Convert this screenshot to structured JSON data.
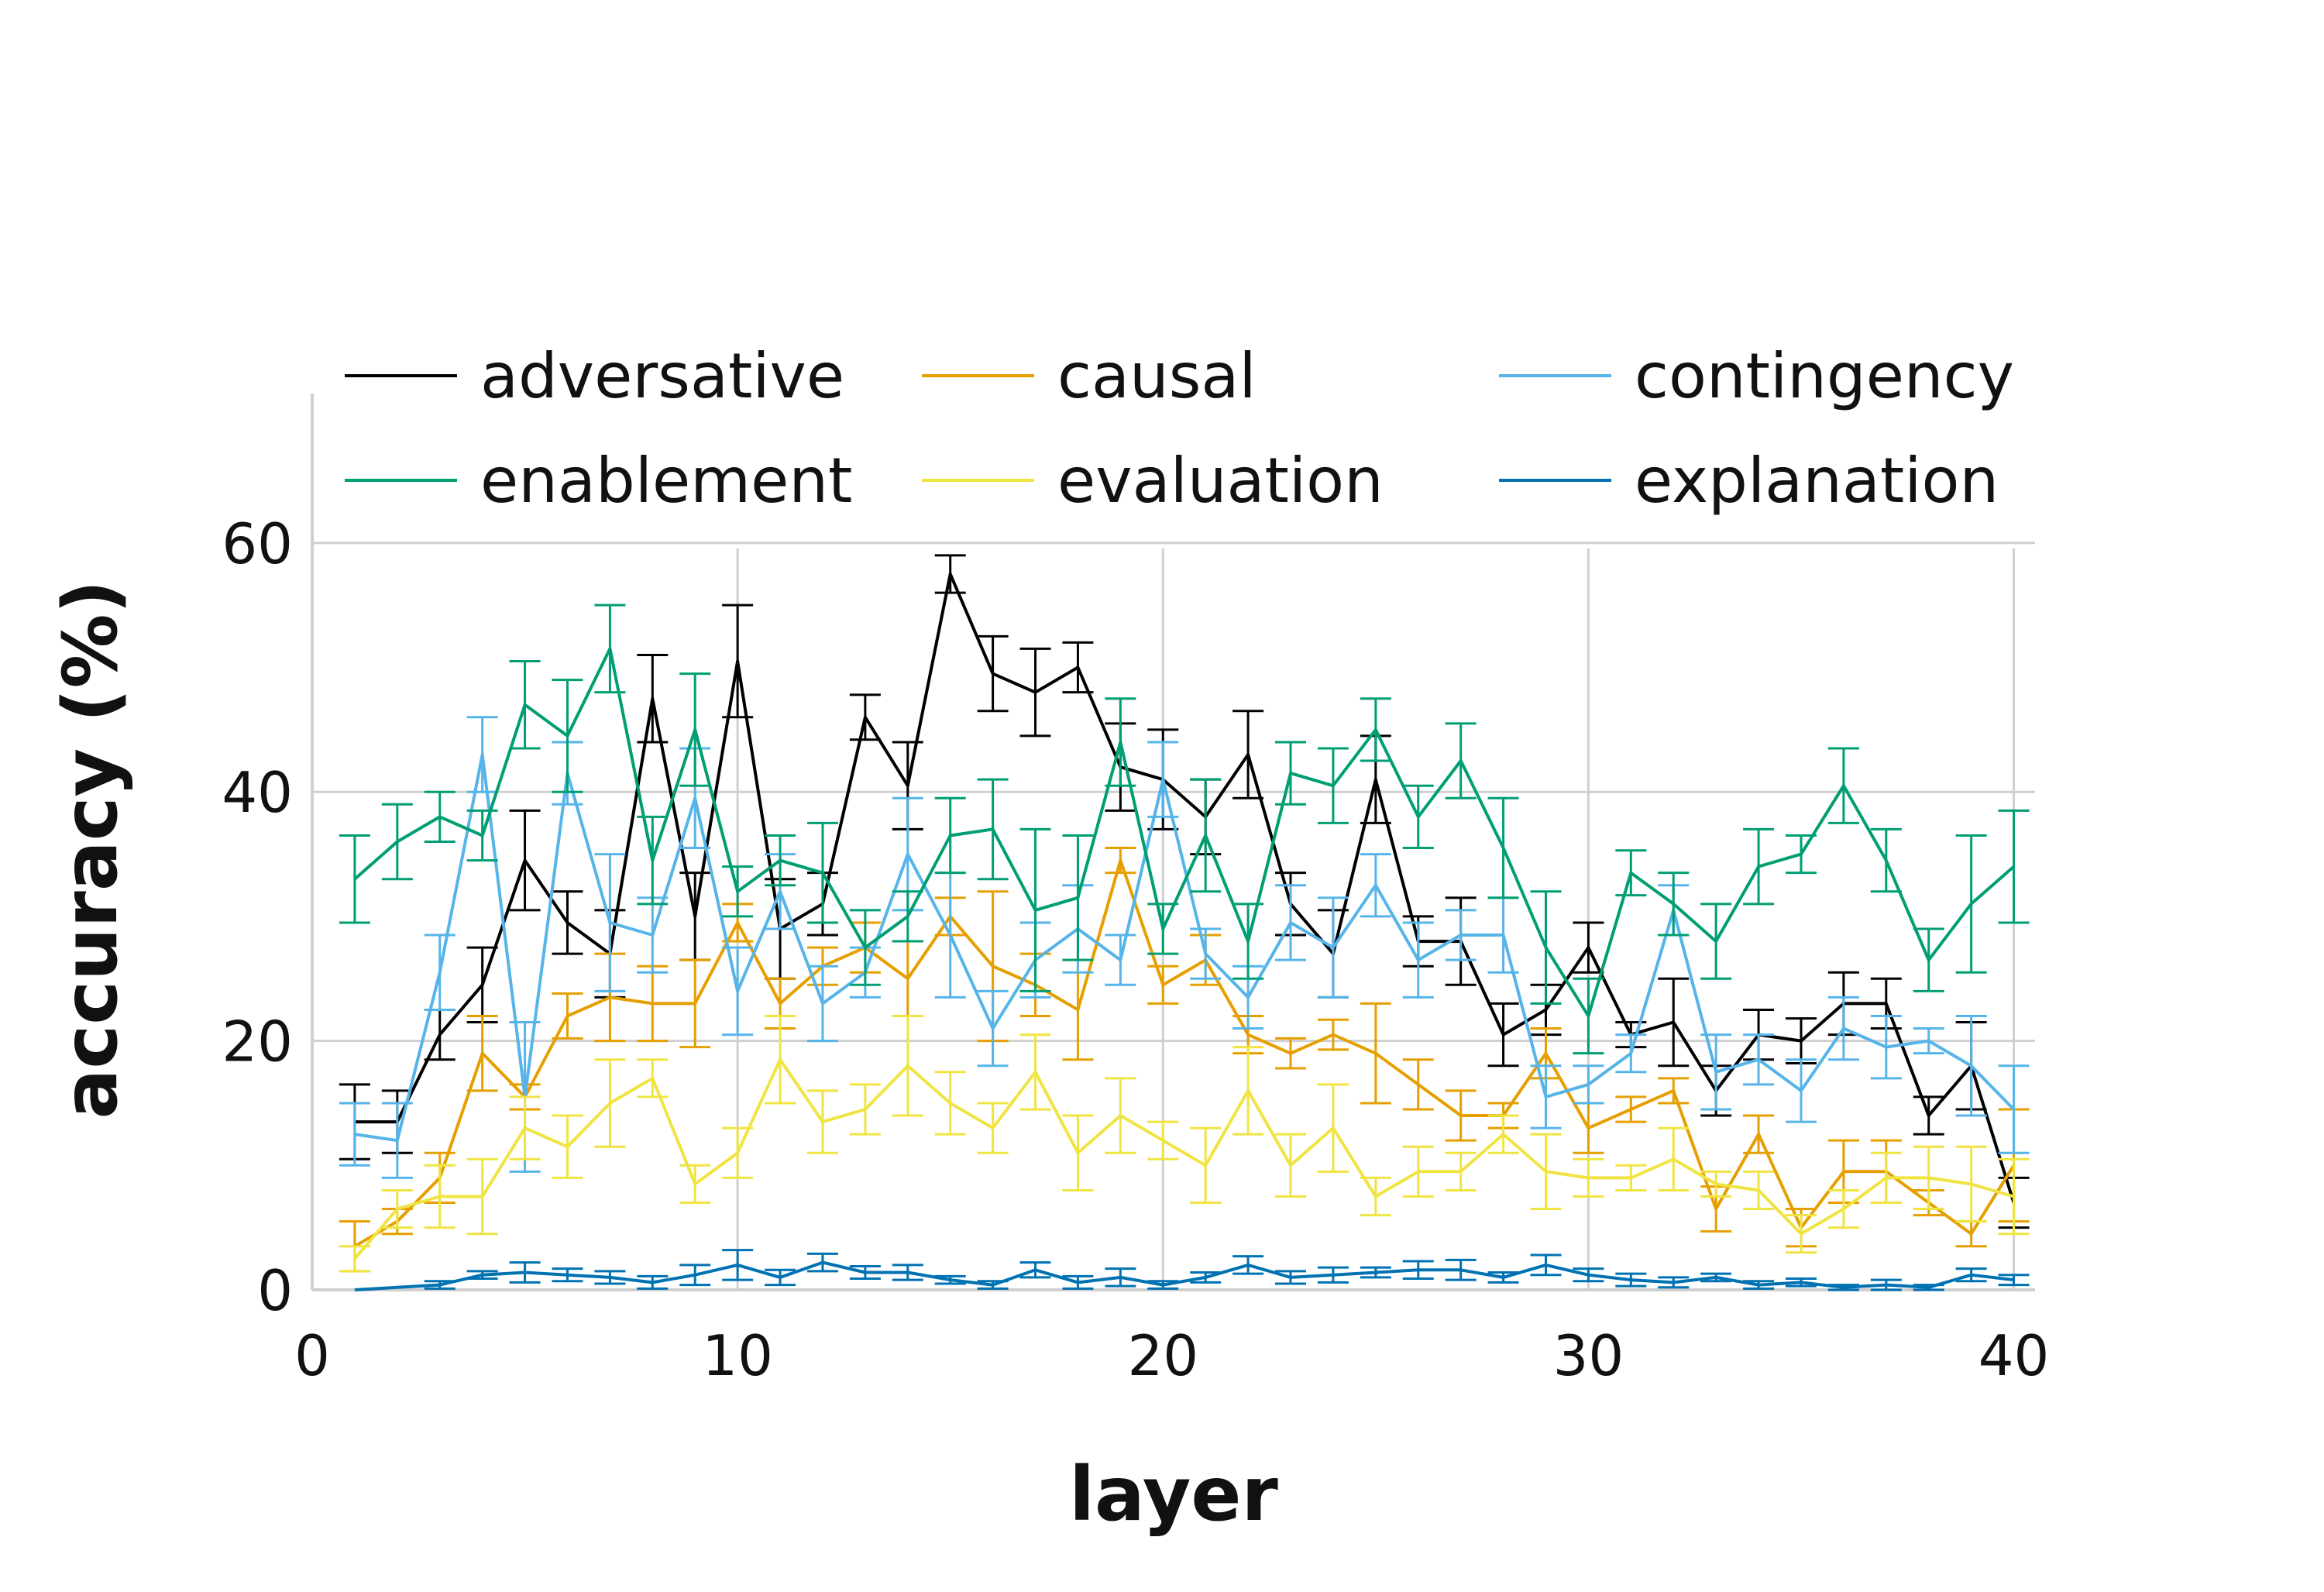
{
  "chart_data": {
    "type": "line",
    "xlabel": "layer",
    "ylabel": "accuracy (%)",
    "xlim": [
      0,
      40.5
    ],
    "ylim": [
      0,
      72
    ],
    "xticks": [
      0,
      10,
      20,
      30,
      40
    ],
    "yticks": [
      0,
      20,
      40,
      60
    ],
    "grid": true,
    "legend_position": "top",
    "x": [
      1,
      2,
      3,
      4,
      5,
      6,
      7,
      8,
      9,
      10,
      11,
      12,
      13,
      14,
      15,
      16,
      17,
      18,
      19,
      20,
      21,
      22,
      23,
      24,
      25,
      26,
      27,
      28,
      29,
      30,
      31,
      32,
      33,
      34,
      35,
      36,
      37,
      38,
      39,
      40
    ],
    "series": [
      {
        "name": "adversative",
        "color": "#000000",
        "values": [
          13.5,
          13.5,
          20.5,
          24.5,
          34.5,
          29.5,
          27.0,
          47.5,
          30.0,
          50.5,
          29.0,
          31.0,
          46.0,
          40.5,
          57.5,
          49.5,
          48.0,
          50.0,
          42.0,
          41.0,
          38.0,
          43.0,
          31.0,
          27.0,
          41.0,
          28.0,
          28.0,
          20.5,
          22.5,
          27.5,
          20.5,
          21.5,
          16.0,
          20.5,
          20.0,
          23.0,
          23.0,
          14.0,
          18.0,
          7.0
        ],
        "errors": [
          3.0,
          2.5,
          2.0,
          3.0,
          4.0,
          2.5,
          3.5,
          3.5,
          3.5,
          4.5,
          4.0,
          2.5,
          1.8,
          3.5,
          1.5,
          3.0,
          3.5,
          2.0,
          3.5,
          4.0,
          3.0,
          3.5,
          2.5,
          3.5,
          3.5,
          2.0,
          3.5,
          2.5,
          2.0,
          2.0,
          1.0,
          3.5,
          2.0,
          2.0,
          1.8,
          2.5,
          2.0,
          1.5,
          3.5,
          2.0
        ]
      },
      {
        "name": "causal",
        "color": "#E69F00",
        "values": [
          3.5,
          5.5,
          9.0,
          19.0,
          15.5,
          22.0,
          23.5,
          23.0,
          23.0,
          29.5,
          23.0,
          26.0,
          27.5,
          25.0,
          30.0,
          26.0,
          24.5,
          22.5,
          34.5,
          24.5,
          26.5,
          20.5,
          19.0,
          20.5,
          19.0,
          16.5,
          14.0,
          14.0,
          19.0,
          13.0,
          14.5,
          16.0,
          6.5,
          12.5,
          5.0,
          9.5,
          9.5,
          7.0,
          4.5,
          10.0
        ],
        "errors": [
          2.0,
          1.0,
          2.0,
          3.0,
          1.0,
          1.8,
          3.5,
          3.0,
          3.5,
          1.5,
          2.0,
          1.5,
          2.0,
          3.0,
          1.5,
          6.0,
          2.5,
          4.0,
          1.0,
          1.5,
          2.0,
          1.5,
          1.2,
          1.2,
          4.0,
          2.0,
          2.0,
          1.0,
          2.0,
          2.0,
          1.0,
          1.0,
          1.8,
          1.5,
          1.5,
          2.5,
          2.5,
          1.0,
          1.0,
          4.5
        ]
      },
      {
        "name": "contingency",
        "color": "#56B4E9",
        "values": [
          12.5,
          12.0,
          25.5,
          43.0,
          15.5,
          41.5,
          29.5,
          28.5,
          39.5,
          24.0,
          32.0,
          23.0,
          25.5,
          35.0,
          28.5,
          21.0,
          26.5,
          29.0,
          26.5,
          41.0,
          27.0,
          23.5,
          29.5,
          27.5,
          32.5,
          26.5,
          28.5,
          28.5,
          15.5,
          16.5,
          19.0,
          30.5,
          17.5,
          18.5,
          16.0,
          21.0,
          19.5,
          20.0,
          18.0,
          14.5
        ],
        "errors": [
          2.5,
          3.0,
          3.0,
          3.0,
          6.0,
          2.5,
          5.5,
          3.0,
          4.0,
          3.5,
          3.0,
          3.0,
          2.0,
          4.5,
          5.0,
          3.0,
          3.0,
          3.5,
          2.0,
          3.0,
          2.0,
          2.5,
          3.0,
          4.0,
          2.5,
          3.0,
          2.0,
          3.0,
          2.5,
          1.5,
          1.5,
          2.0,
          3.0,
          2.0,
          2.5,
          2.5,
          2.5,
          1.0,
          4.0,
          3.5
        ]
      },
      {
        "name": "enablement",
        "color": "#009E73",
        "values": [
          33.0,
          36.0,
          38.0,
          36.5,
          47.0,
          44.5,
          51.5,
          34.5,
          45.0,
          32.0,
          34.5,
          33.5,
          27.5,
          30.0,
          36.5,
          37.0,
          30.5,
          31.5,
          44.0,
          29.0,
          36.5,
          28.0,
          41.5,
          40.5,
          45.0,
          38.0,
          42.5,
          35.5,
          27.5,
          22.0,
          33.5,
          31.0,
          28.0,
          34.0,
          35.0,
          40.5,
          34.5,
          26.5,
          31.0,
          34.0
        ],
        "errors": [
          3.5,
          3.0,
          2.0,
          2.0,
          3.5,
          4.5,
          3.5,
          3.5,
          4.5,
          2.0,
          2.0,
          4.0,
          3.0,
          2.0,
          3.0,
          4.0,
          6.5,
          5.0,
          3.5,
          2.0,
          4.5,
          3.0,
          2.5,
          3.0,
          2.5,
          2.5,
          3.0,
          4.0,
          4.5,
          3.0,
          1.8,
          2.5,
          3.0,
          3.0,
          1.5,
          3.0,
          2.5,
          2.5,
          5.5,
          4.5
        ]
      },
      {
        "name": "evaluation",
        "color": "#F0E442",
        "values": [
          2.5,
          6.5,
          7.5,
          7.5,
          13.0,
          11.5,
          15.0,
          17.0,
          8.5,
          11.0,
          18.5,
          13.5,
          14.5,
          18.0,
          15.0,
          13.0,
          17.5,
          11.0,
          14.0,
          12.0,
          10.0,
          16.0,
          10.0,
          13.0,
          7.5,
          9.5,
          9.5,
          12.5,
          9.5,
          9.0,
          9.0,
          10.5,
          8.5,
          8.0,
          4.5,
          6.5,
          9.0,
          9.0,
          8.5,
          7.5
        ],
        "errors": [
          1.0,
          1.5,
          2.5,
          3.0,
          2.5,
          2.5,
          3.5,
          1.5,
          1.5,
          2.0,
          3.5,
          2.5,
          2.0,
          4.0,
          2.5,
          2.0,
          3.0,
          3.0,
          3.0,
          1.5,
          3.0,
          3.5,
          2.5,
          3.5,
          1.5,
          2.0,
          1.5,
          1.5,
          3.0,
          1.5,
          1.0,
          2.5,
          1.0,
          1.5,
          1.5,
          1.5,
          2.0,
          2.5,
          3.0,
          3.0
        ]
      },
      {
        "name": "explanation",
        "color": "#0072B2",
        "values": [
          0.0,
          0.2,
          0.4,
          1.2,
          1.4,
          1.2,
          1.0,
          0.6,
          1.2,
          2.0,
          1.0,
          2.2,
          1.4,
          1.4,
          0.8,
          0.4,
          1.6,
          0.6,
          1.0,
          0.4,
          1.0,
          2.0,
          1.0,
          1.2,
          1.4,
          1.6,
          1.6,
          1.0,
          2.0,
          1.2,
          0.8,
          0.6,
          1.0,
          0.4,
          0.6,
          0.2,
          0.4,
          0.2,
          1.2,
          0.8
        ],
        "errors": [
          0.0,
          0.0,
          0.3,
          0.3,
          0.8,
          0.5,
          0.5,
          0.5,
          0.8,
          1.2,
          0.6,
          0.7,
          0.5,
          0.6,
          0.3,
          0.3,
          0.6,
          0.5,
          0.7,
          0.3,
          0.4,
          0.7,
          0.5,
          0.6,
          0.4,
          0.7,
          0.8,
          0.4,
          0.8,
          0.5,
          0.5,
          0.4,
          0.3,
          0.3,
          0.3,
          0.2,
          0.4,
          0.2,
          0.5,
          0.4
        ]
      }
    ]
  }
}
